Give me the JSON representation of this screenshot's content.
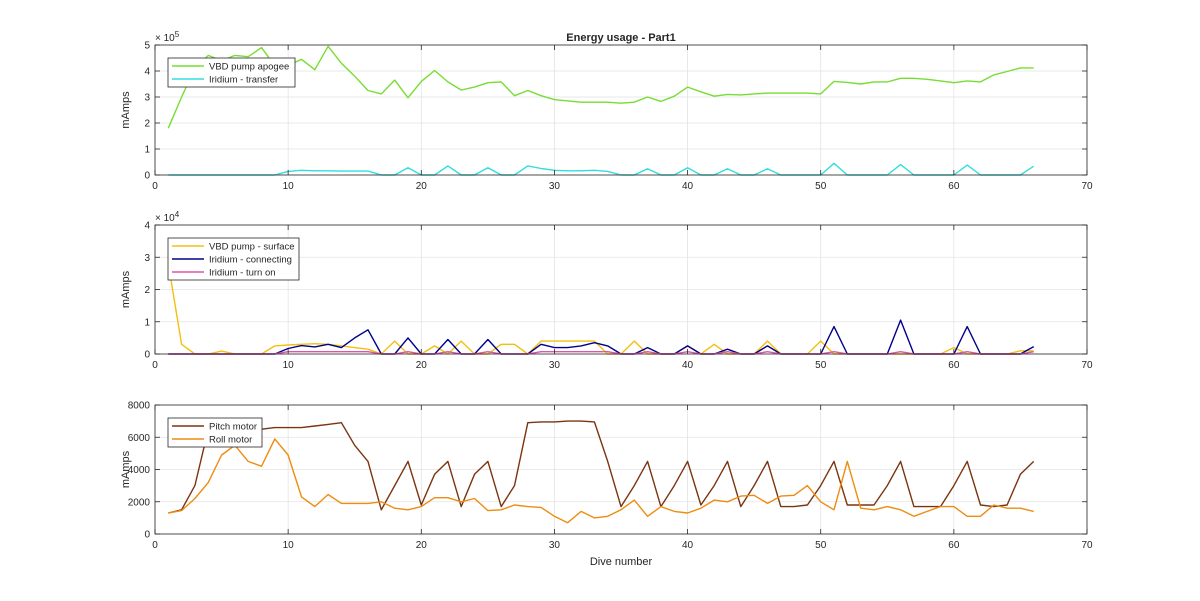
{
  "figure": {
    "title": "Energy usage - Part1",
    "xlabel": "Dive number"
  },
  "chart_data": [
    {
      "type": "line",
      "title": "Energy usage - Part1",
      "xlabel": "",
      "ylabel": "mAmps",
      "xlim": [
        0,
        70
      ],
      "ylim": [
        0,
        500000
      ],
      "x_ticks": [
        0,
        10,
        20,
        30,
        40,
        50,
        60,
        70
      ],
      "y_ticks": [
        0,
        100000,
        200000,
        300000,
        400000,
        500000
      ],
      "y_tick_labels": [
        "0",
        "1",
        "2",
        "3",
        "4",
        "5"
      ],
      "y_multiplier_base": "× 10",
      "y_multiplier_exp": "5",
      "grid": true,
      "legend_position": "top-left",
      "series": [
        {
          "name": "VBD pump apogee",
          "color": "#77dd33",
          "x": [
            1,
            2,
            3,
            4,
            5,
            6,
            7,
            8,
            9,
            10,
            11,
            12,
            13,
            14,
            15,
            16,
            17,
            18,
            19,
            20,
            21,
            22,
            23,
            24,
            25,
            26,
            27,
            28,
            29,
            30,
            31,
            32,
            33,
            34,
            35,
            36,
            37,
            38,
            39,
            40,
            41,
            42,
            43,
            44,
            45,
            46,
            47,
            48,
            49,
            50,
            51,
            52,
            53,
            54,
            55,
            56,
            57,
            58,
            59,
            60,
            61,
            62,
            63,
            64,
            65,
            66
          ],
          "y": [
            180000,
            300000,
            410000,
            460000,
            440000,
            460000,
            455000,
            490000,
            420000,
            420000,
            445000,
            405000,
            495000,
            430000,
            380000,
            325000,
            312000,
            365000,
            297000,
            360000,
            402000,
            358000,
            327000,
            338000,
            355000,
            358000,
            305000,
            325000,
            305000,
            290000,
            285000,
            280000,
            280000,
            280000,
            276000,
            280000,
            300000,
            283000,
            303000,
            338000,
            320000,
            303000,
            310000,
            308000,
            312000,
            315000,
            315000,
            315000,
            315000,
            312000,
            360000,
            356000,
            350000,
            358000,
            358000,
            372000,
            372000,
            368000,
            362000,
            355000,
            362000,
            358000,
            385000,
            398000,
            412000,
            412000
          ]
        },
        {
          "name": "Iridium - transfer",
          "color": "#33dddd",
          "x": [
            1,
            2,
            3,
            4,
            5,
            6,
            7,
            8,
            9,
            10,
            11,
            12,
            13,
            14,
            15,
            16,
            17,
            18,
            19,
            20,
            21,
            22,
            23,
            24,
            25,
            26,
            27,
            28,
            29,
            30,
            31,
            32,
            33,
            34,
            35,
            36,
            37,
            38,
            39,
            40,
            41,
            42,
            43,
            44,
            45,
            46,
            47,
            48,
            49,
            50,
            51,
            52,
            53,
            54,
            55,
            56,
            57,
            58,
            59,
            60,
            61,
            62,
            63,
            64,
            65,
            66
          ],
          "y": [
            0,
            0,
            0,
            0,
            0,
            0,
            0,
            0,
            0,
            14000,
            18000,
            16000,
            16000,
            15000,
            15000,
            15000,
            0,
            0,
            28000,
            0,
            0,
            35000,
            0,
            0,
            28000,
            0,
            0,
            35000,
            25000,
            18000,
            16000,
            16000,
            18000,
            14000,
            0,
            0,
            24000,
            0,
            0,
            28000,
            0,
            0,
            24000,
            0,
            0,
            24000,
            0,
            0,
            0,
            0,
            45000,
            0,
            0,
            0,
            0,
            40000,
            0,
            0,
            0,
            0,
            38000,
            0,
            0,
            0,
            0,
            34000
          ]
        }
      ]
    },
    {
      "type": "line",
      "title": "",
      "xlabel": "",
      "ylabel": "mAmps",
      "xlim": [
        0,
        70
      ],
      "ylim": [
        0,
        40000
      ],
      "x_ticks": [
        0,
        10,
        20,
        30,
        40,
        50,
        60,
        70
      ],
      "y_ticks": [
        0,
        10000,
        20000,
        30000,
        40000
      ],
      "y_tick_labels": [
        "0",
        "1",
        "2",
        "3",
        "4"
      ],
      "y_multiplier_base": "× 10",
      "y_multiplier_exp": "4",
      "grid": true,
      "legend_position": "top-left",
      "series": [
        {
          "name": "VBD pump - surface",
          "color": "#f2c010",
          "x": [
            1,
            2,
            3,
            4,
            5,
            6,
            7,
            8,
            9,
            10,
            11,
            12,
            13,
            14,
            15,
            16,
            17,
            18,
            19,
            20,
            21,
            22,
            23,
            24,
            25,
            26,
            27,
            28,
            29,
            30,
            31,
            32,
            33,
            34,
            35,
            36,
            37,
            38,
            39,
            40,
            41,
            42,
            43,
            44,
            45,
            46,
            47,
            48,
            49,
            50,
            51,
            52,
            53,
            54,
            55,
            56,
            57,
            58,
            59,
            60,
            61,
            62,
            63,
            64,
            65,
            66
          ],
          "y": [
            28000,
            3000,
            0,
            0,
            900,
            0,
            0,
            0,
            2500,
            2800,
            3000,
            3200,
            3000,
            2500,
            2000,
            1500,
            0,
            4000,
            0,
            0,
            2500,
            0,
            4000,
            0,
            0,
            3000,
            3000,
            0,
            4000,
            4000,
            4000,
            4000,
            4000,
            0,
            0,
            4000,
            0,
            0,
            0,
            2500,
            0,
            3000,
            0,
            0,
            0,
            4000,
            0,
            0,
            0,
            4000,
            0,
            0,
            0,
            0,
            0,
            0,
            0,
            0,
            0,
            2000,
            0,
            0,
            0,
            0,
            1000,
            1000
          ]
        },
        {
          "name": "Iridium - connecting",
          "color": "#00008c",
          "x": [
            1,
            2,
            3,
            4,
            5,
            6,
            7,
            8,
            9,
            10,
            11,
            12,
            13,
            14,
            15,
            16,
            17,
            18,
            19,
            20,
            21,
            22,
            23,
            24,
            25,
            26,
            27,
            28,
            29,
            30,
            31,
            32,
            33,
            34,
            35,
            36,
            37,
            38,
            39,
            40,
            41,
            42,
            43,
            44,
            45,
            46,
            47,
            48,
            49,
            50,
            51,
            52,
            53,
            54,
            55,
            56,
            57,
            58,
            59,
            60,
            61,
            62,
            63,
            64,
            65,
            66
          ],
          "y": [
            0,
            0,
            0,
            0,
            0,
            0,
            0,
            0,
            0,
            1700,
            2600,
            2200,
            3000,
            2000,
            5000,
            7500,
            0,
            0,
            5000,
            0,
            0,
            4500,
            0,
            0,
            4500,
            0,
            0,
            0,
            3000,
            2000,
            2000,
            2500,
            3500,
            2500,
            0,
            0,
            2000,
            0,
            0,
            2500,
            0,
            0,
            1500,
            0,
            0,
            2500,
            0,
            0,
            0,
            0,
            8500,
            0,
            0,
            0,
            0,
            10500,
            0,
            0,
            0,
            0,
            8500,
            0,
            0,
            0,
            0,
            2300
          ]
        },
        {
          "name": "Iridium - turn on",
          "color": "#dd55aa",
          "x": [
            1,
            2,
            3,
            4,
            5,
            6,
            7,
            8,
            9,
            10,
            11,
            12,
            13,
            14,
            15,
            16,
            17,
            18,
            19,
            20,
            21,
            22,
            23,
            24,
            25,
            26,
            27,
            28,
            29,
            30,
            31,
            32,
            33,
            34,
            35,
            36,
            37,
            38,
            39,
            40,
            41,
            42,
            43,
            44,
            45,
            46,
            47,
            48,
            49,
            50,
            51,
            52,
            53,
            54,
            55,
            56,
            57,
            58,
            59,
            60,
            61,
            62,
            63,
            64,
            65,
            66
          ],
          "y": [
            0,
            0,
            0,
            0,
            0,
            0,
            0,
            0,
            0,
            700,
            700,
            700,
            700,
            700,
            700,
            700,
            0,
            0,
            700,
            0,
            0,
            700,
            0,
            0,
            700,
            0,
            0,
            0,
            700,
            700,
            700,
            700,
            700,
            700,
            0,
            0,
            700,
            0,
            0,
            700,
            0,
            0,
            700,
            0,
            0,
            700,
            0,
            0,
            0,
            0,
            700,
            0,
            0,
            0,
            0,
            700,
            0,
            0,
            0,
            0,
            700,
            0,
            0,
            0,
            0,
            700
          ]
        }
      ]
    },
    {
      "type": "line",
      "title": "",
      "xlabel": "Dive number",
      "ylabel": "mAmps",
      "xlim": [
        0,
        70
      ],
      "ylim": [
        0,
        8000
      ],
      "x_ticks": [
        0,
        10,
        20,
        30,
        40,
        50,
        60,
        70
      ],
      "y_ticks": [
        0,
        2000,
        4000,
        6000,
        8000
      ],
      "y_tick_labels": [
        "0",
        "2000",
        "4000",
        "6000",
        "8000"
      ],
      "y_multiplier_base": "",
      "y_multiplier_exp": "",
      "grid": true,
      "legend_position": "top-left",
      "series": [
        {
          "name": "Pitch motor",
          "color": "#7a3410",
          "x": [
            1,
            2,
            3,
            4,
            5,
            6,
            7,
            8,
            9,
            10,
            11,
            12,
            13,
            14,
            15,
            16,
            17,
            18,
            19,
            20,
            21,
            22,
            23,
            24,
            25,
            26,
            27,
            28,
            29,
            30,
            31,
            32,
            33,
            34,
            35,
            36,
            37,
            38,
            39,
            40,
            41,
            42,
            43,
            44,
            45,
            46,
            47,
            48,
            49,
            50,
            51,
            52,
            53,
            54,
            55,
            56,
            57,
            58,
            59,
            60,
            61,
            62,
            63,
            64,
            65,
            66
          ],
          "y": [
            1300,
            1500,
            3000,
            6500,
            6500,
            6500,
            6500,
            6500,
            6600,
            6600,
            6600,
            6700,
            6800,
            6900,
            5500,
            4500,
            1500,
            3000,
            4500,
            1800,
            3700,
            4500,
            1700,
            3700,
            4500,
            1700,
            3000,
            6900,
            6950,
            6950,
            7000,
            7000,
            6950,
            4500,
            1700,
            3000,
            4500,
            1700,
            3000,
            4500,
            1800,
            3000,
            4500,
            1700,
            3000,
            4500,
            1700,
            1700,
            1800,
            3000,
            4500,
            1800,
            1800,
            1800,
            3000,
            4500,
            1700,
            1700,
            1700,
            3000,
            4500,
            1800,
            1700,
            1800,
            3700,
            4500
          ]
        },
        {
          "name": "Roll motor",
          "color": "#ee8c10",
          "x": [
            1,
            2,
            3,
            4,
            5,
            6,
            7,
            8,
            9,
            10,
            11,
            12,
            13,
            14,
            15,
            16,
            17,
            18,
            19,
            20,
            21,
            22,
            23,
            24,
            25,
            26,
            27,
            28,
            29,
            30,
            31,
            32,
            33,
            34,
            35,
            36,
            37,
            38,
            39,
            40,
            41,
            42,
            43,
            44,
            45,
            46,
            47,
            48,
            49,
            50,
            51,
            52,
            53,
            54,
            55,
            56,
            57,
            58,
            59,
            60,
            61,
            62,
            63,
            64,
            65,
            66
          ],
          "y": [
            1300,
            1450,
            2200,
            3200,
            4900,
            5500,
            4500,
            4200,
            5900,
            4900,
            2300,
            1700,
            2450,
            1900,
            1900,
            1900,
            2000,
            1600,
            1500,
            1700,
            2250,
            2250,
            2000,
            2200,
            1450,
            1500,
            1800,
            1700,
            1650,
            1100,
            700,
            1400,
            1000,
            1100,
            1500,
            2100,
            1100,
            1700,
            1400,
            1300,
            1600,
            2100,
            2000,
            2350,
            2400,
            1900,
            2350,
            2400,
            3000,
            2000,
            1500,
            4500,
            1600,
            1500,
            1700,
            1500,
            1100,
            1400,
            1700,
            1700,
            1100,
            1100,
            1800,
            1600,
            1600,
            1400
          ]
        }
      ]
    }
  ]
}
